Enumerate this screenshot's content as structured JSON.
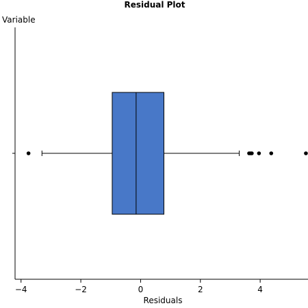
{
  "chart_data": {
    "type": "boxplot",
    "title": "Residual Plot",
    "xlabel": "Residuals",
    "ylabel": "Variable",
    "xlim": [
      -4.2,
      5.6
    ],
    "xticks": [
      -4,
      -2,
      0,
      2,
      4
    ],
    "xtick_labels": [
      "−4",
      "−2",
      "0",
      "2",
      "4"
    ],
    "box": {
      "whisker_low": -3.3,
      "q1": -0.95,
      "median": -0.15,
      "q3": 0.78,
      "whisker_high": 3.3
    },
    "outliers": [
      -3.75,
      3.63,
      3.68,
      3.72,
      3.96,
      4.37,
      5.53
    ],
    "box_color": "#4878c8"
  }
}
